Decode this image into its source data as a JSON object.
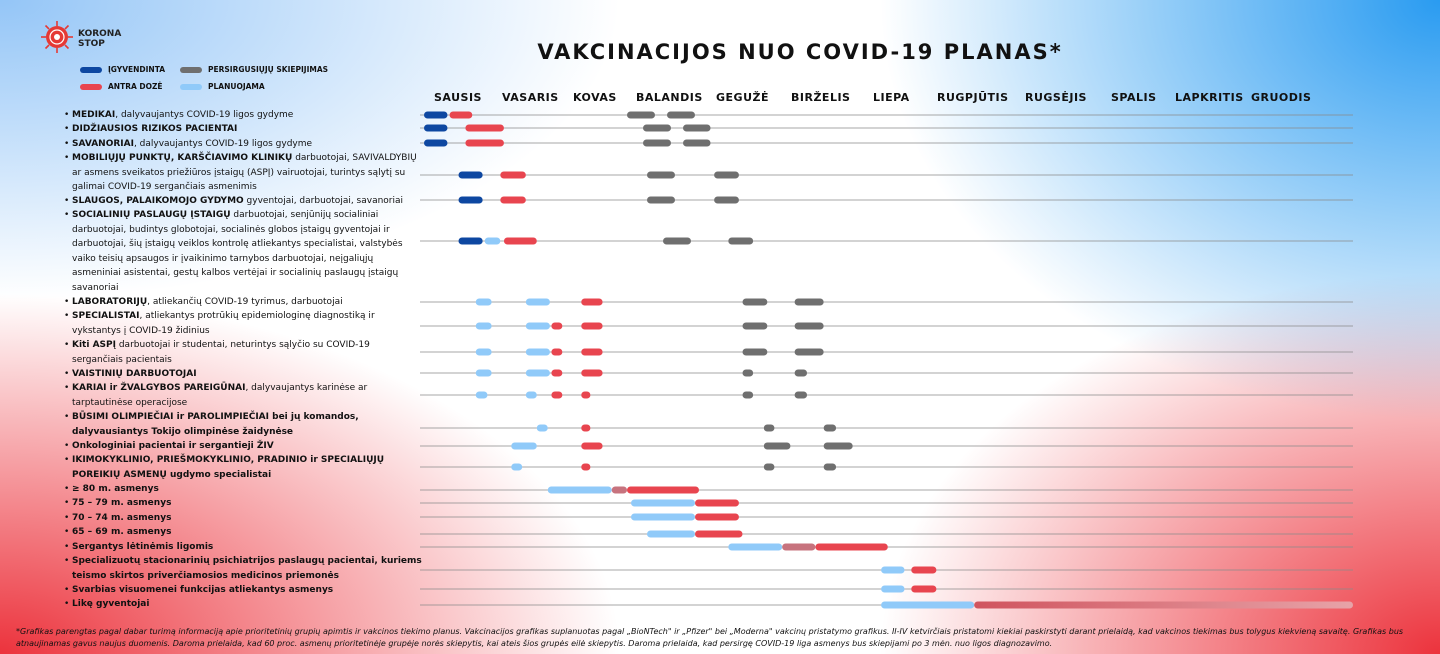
{
  "brand": {
    "line1": "KORONA",
    "line2": "STOP"
  },
  "title": "VAKCINACIJOS NUO COVID-19 PLANAS*",
  "legend": [
    {
      "label": "ĮGYVENDINTA",
      "color": "#0d47a1"
    },
    {
      "label": "ANTRA DOZĖ",
      "color": "#e8454f"
    },
    {
      "label": "PERSIRGUSIŲJŲ SKIEPIJIMAS",
      "color": "#6f6f6f"
    },
    {
      "label": "PLANUOJAMA",
      "color": "#90caf9"
    }
  ],
  "months": [
    "SAUSIS",
    "VASARIS",
    "KOVAS",
    "BALANDIS",
    "GEGUŽĖ",
    "BIRŽELIS",
    "LIEPA",
    "RUGPJŪTIS",
    "RUGSĖJIS",
    "SPALIS",
    "LAPKRITIS",
    "GRUODIS"
  ],
  "groups": [
    {
      "bold": "MEDIKAI",
      "text": ", dalyvaujantys COVID-19 ligos gydyme"
    },
    {
      "bold": "DIDŽIAUSIOS RIZIKOS PACIENTAI",
      "text": ""
    },
    {
      "bold": "SAVANORIAI",
      "text": ", dalyvaujantys COVID-19 ligos gydyme"
    },
    {
      "bold": "MOBILIŲJŲ PUNKTŲ, KARŠČIAVIMO KLINIKŲ",
      "text": " darbuotojai, SAVIVALDYBIŲ ar asmens sveikatos priežiūros įstaigų (ASPĮ) vairuotojai, turintys sąlytį su galimai COVID-19 sergančiais asmenimis"
    },
    {
      "bold": "SLAUGOS, PALAIKOMOJO GYDYMO",
      "text": " gyventojai, darbuotojai, savanoriai"
    },
    {
      "bold": "SOCIALINIŲ PASLAUGŲ ĮSTAIGŲ",
      "text": " darbuotojai, senjūnijų socialiniai darbuotojai, budintys globotojai, socialinės globos įstaigų gyventojai ir darbuotojai, šių įstaigų veiklos kontrolę atliekantys specialistai, valstybės vaiko teisių apsaugos ir įvaikinimo tarnybos darbuotojai, neįgaliųjų asmeniniai asistentai, gestų kalbos vertėjai ir socialinių paslaugų įstaigų savanoriai"
    },
    {
      "bold": "LABORATORIJŲ",
      "text": ", atliekančių COVID-19 tyrimus, darbuotojai"
    },
    {
      "bold": "SPECIALISTAI",
      "text": ", atliekantys protrūkių epidemiologinę diagnostiką ir vykstantys į COVID-19 židinius"
    },
    {
      "bold": "Kiti ASPĮ",
      "text": " darbuotojai ir studentai, neturintys sąlyčio su COVID-19 sergančiais pacientais"
    },
    {
      "bold": "VAISTINIŲ DARBUOTOJAI",
      "text": ""
    },
    {
      "bold": "KARIAI ir ŽVALGYBOS PAREIGŪNAI",
      "text": ", dalyvaujantys karinėse ar tarptautinėse operacijose"
    },
    {
      "bold": "BŪSIMI OLIMPIEČIAI ir PAROLIMPIEČIAI bei jų komandos, dalyvausiantys Tokijo olimpinėse žaidynėse",
      "text": ""
    },
    {
      "bold": "Onkologiniai pacientai ir sergantieji ŽIV",
      "text": ""
    },
    {
      "bold": "IKIMOKYKLINIO, PRIEŠMOKYKLINIO, PRADINIO ir SPECIALIŲJŲ POREIKIŲ ASMENŲ ugdymo specialistai",
      "text": ""
    },
    {
      "bold": "≥ 80 m. asmenys",
      "text": ""
    },
    {
      "bold": "75 – 79 m. asmenys",
      "text": ""
    },
    {
      "bold": "70 – 74 m. asmenys",
      "text": ""
    },
    {
      "bold": "65 – 69 m. asmenys",
      "text": ""
    },
    {
      "bold": "Sergantys lėtinėmis ligomis",
      "text": ""
    },
    {
      "bold": "Specializuotų stacionarinių psichiatrijos paslaugų pacientai, kuriems teismo skirtos priverčiamosios medicinos priemonės",
      "text": ""
    },
    {
      "bold": "Svarbias visuomenei funkcijas atliekantys asmenys",
      "text": ""
    },
    {
      "bold": "Likę gyventojai",
      "text": ""
    }
  ],
  "footnote": "*Grafikas parengtas pagal dabar turimą informaciją apie prioritetinių grupių apimtis ir vakcinos tiekimo planus.   Vakcinacijos grafikas suplanuotas pagal „BioNTech\" ir „Pfizer\" bei „Moderna\" vakcinų pristatymo grafikus. II-IV ketvirčiais pristatomi kiekiai paskirstyti darant prielaidą, kad vakcinos tiekimas bus tolygus kiekvieną savaitę. Grafikas bus atnaujinamas gavus naujus duomenis. Daroma prielaida, kad 60 proc. asmenų prioritetinėje grupėje norės skiepytis, kai ateis šios grupės eilė skiepytis.  Daroma prielaida, kad persirgę COVID-19 liga asmenys bus skiepijami po 3 mėn. nuo ligos diagnozavimo.",
  "chart_data": {
    "type": "gantt",
    "title": "VAKCINACIJOS NUO COVID-19 PLANAS*",
    "x_unit": "months of 2021 (0 = start of SAUSIS, 12 = end of GRUODIS)",
    "xlim": [
      0,
      12
    ],
    "categories": [
      "SAUSIS",
      "VASARIS",
      "KOVAS",
      "BALANDIS",
      "GEGUŽĖ",
      "BIRŽELIS",
      "LIEPA",
      "RUGPJŪTIS",
      "RUGSĖJIS",
      "SPALIS",
      "LAPKRITIS",
      "GRUODIS"
    ],
    "series_colors": {
      "done": "#0d47a1",
      "dose2": "#e8454f",
      "recovered": "#6f6f6f",
      "planned": "#90caf9"
    },
    "rows": [
      {
        "group": 0,
        "bars": [
          [
            0.0,
            0.34,
            "done"
          ],
          [
            0.37,
            0.7,
            "dose2"
          ],
          [
            3.0,
            3.35,
            "recovered"
          ],
          [
            3.5,
            3.85,
            "recovered"
          ]
        ]
      },
      {
        "group": 1,
        "bars": [
          [
            0.0,
            0.34,
            "done"
          ],
          [
            0.6,
            1.15,
            "dose2"
          ],
          [
            3.2,
            3.55,
            "recovered"
          ],
          [
            3.7,
            4.05,
            "recovered"
          ]
        ]
      },
      {
        "group": 2,
        "bars": [
          [
            0.0,
            0.34,
            "done"
          ],
          [
            0.6,
            1.15,
            "dose2"
          ],
          [
            3.2,
            3.55,
            "recovered"
          ],
          [
            3.7,
            4.05,
            "recovered"
          ]
        ]
      },
      {
        "group": 3,
        "bars": [
          [
            0.5,
            0.85,
            "done"
          ],
          [
            1.1,
            1.45,
            "dose2"
          ],
          [
            3.25,
            3.6,
            "recovered"
          ],
          [
            4.1,
            4.45,
            "recovered"
          ]
        ]
      },
      {
        "group": 4,
        "bars": [
          [
            0.5,
            0.85,
            "done"
          ],
          [
            1.1,
            1.45,
            "dose2"
          ],
          [
            3.25,
            3.6,
            "recovered"
          ],
          [
            4.1,
            4.45,
            "recovered"
          ]
        ]
      },
      {
        "group": 5,
        "bars": [
          [
            0.5,
            0.85,
            "done"
          ],
          [
            0.88,
            1.1,
            "planned"
          ],
          [
            1.15,
            1.6,
            "dose2"
          ],
          [
            3.45,
            3.8,
            "recovered"
          ],
          [
            4.3,
            4.65,
            "recovered"
          ]
        ]
      },
      {
        "group": 6,
        "bars": [
          [
            0.75,
            0.98,
            "planned"
          ],
          [
            1.45,
            1.78,
            "planned"
          ],
          [
            2.25,
            2.6,
            "dose2"
          ],
          [
            4.5,
            4.85,
            "recovered"
          ],
          [
            5.2,
            5.55,
            "recovered"
          ]
        ]
      },
      {
        "group": 7,
        "bars": [
          [
            0.75,
            0.98,
            "planned"
          ],
          [
            1.45,
            1.78,
            "planned"
          ],
          [
            1.8,
            1.95,
            "dose2"
          ],
          [
            2.25,
            2.6,
            "dose2"
          ],
          [
            4.5,
            4.85,
            "recovered"
          ],
          [
            5.2,
            5.55,
            "recovered"
          ]
        ]
      },
      {
        "group": 8,
        "bars": [
          [
            0.75,
            0.98,
            "planned"
          ],
          [
            1.45,
            1.78,
            "planned"
          ],
          [
            1.8,
            1.95,
            "dose2"
          ],
          [
            2.25,
            2.6,
            "dose2"
          ],
          [
            4.5,
            4.85,
            "recovered"
          ],
          [
            5.2,
            5.55,
            "recovered"
          ]
        ]
      },
      {
        "group": 9,
        "bars": [
          [
            0.75,
            0.98,
            "planned"
          ],
          [
            1.45,
            1.78,
            "planned"
          ],
          [
            1.8,
            1.95,
            "dose2"
          ],
          [
            2.25,
            2.6,
            "dose2"
          ],
          [
            4.5,
            4.65,
            "recovered"
          ],
          [
            5.2,
            5.35,
            "recovered"
          ]
        ]
      },
      {
        "group": 10,
        "bars": [
          [
            0.75,
            0.92,
            "planned"
          ],
          [
            1.45,
            1.6,
            "planned"
          ],
          [
            1.8,
            1.95,
            "dose2"
          ],
          [
            2.25,
            2.4,
            "dose2"
          ],
          [
            4.5,
            4.65,
            "recovered"
          ],
          [
            5.2,
            5.35,
            "recovered"
          ]
        ]
      },
      {
        "group": 11,
        "bars": [
          [
            1.6,
            1.75,
            "planned"
          ],
          [
            2.25,
            2.4,
            "dose2"
          ],
          [
            4.8,
            4.95,
            "recovered"
          ],
          [
            5.55,
            5.7,
            "recovered"
          ]
        ]
      },
      {
        "group": 12,
        "bars": [
          [
            1.25,
            1.6,
            "planned"
          ],
          [
            2.25,
            2.6,
            "dose2"
          ],
          [
            4.8,
            5.15,
            "recovered"
          ],
          [
            5.55,
            5.9,
            "recovered"
          ]
        ]
      },
      {
        "group": 13,
        "bars": [
          [
            1.25,
            1.4,
            "planned"
          ],
          [
            2.25,
            2.4,
            "dose2"
          ],
          [
            4.8,
            4.95,
            "recovered"
          ],
          [
            5.55,
            5.7,
            "recovered"
          ]
        ]
      },
      {
        "group": 14,
        "bars": [
          [
            1.75,
            2.75,
            "planned"
          ],
          [
            2.75,
            3.0,
            "mix"
          ],
          [
            3.0,
            3.9,
            "dose2"
          ]
        ]
      },
      {
        "group": 15,
        "bars": [
          [
            3.05,
            3.85,
            "planned"
          ],
          [
            3.85,
            4.45,
            "dose2"
          ]
        ]
      },
      {
        "group": 16,
        "bars": [
          [
            3.05,
            3.85,
            "planned"
          ],
          [
            3.85,
            4.45,
            "dose2"
          ]
        ]
      },
      {
        "group": 17,
        "bars": [
          [
            3.25,
            3.85,
            "planned"
          ],
          [
            3.85,
            4.5,
            "dose2"
          ]
        ]
      },
      {
        "group": 18,
        "bars": [
          [
            4.3,
            5.05,
            "planned"
          ],
          [
            5.05,
            5.45,
            "mix"
          ],
          [
            5.45,
            6.4,
            "dose2"
          ]
        ]
      },
      {
        "group": 19,
        "bars": [
          [
            6.3,
            6.65,
            "planned"
          ],
          [
            6.75,
            7.1,
            "dose2"
          ]
        ]
      },
      {
        "group": 20,
        "bars": [
          [
            6.3,
            6.65,
            "planned"
          ],
          [
            6.75,
            7.1,
            "dose2"
          ]
        ]
      },
      {
        "group": 21,
        "bars": [
          [
            6.3,
            7.55,
            "planned"
          ],
          [
            7.55,
            12.0,
            "fade"
          ]
        ]
      }
    ]
  }
}
